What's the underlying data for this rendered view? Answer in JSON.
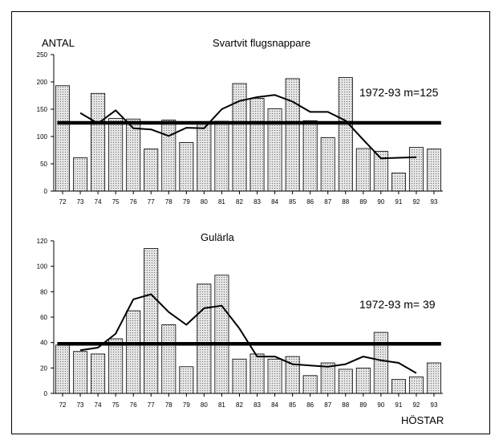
{
  "colors": {
    "bar_fill": "#d8d8d8",
    "bar_stroke": "#000000",
    "mean_line": "#000000",
    "trend_line": "#000000"
  },
  "chart_data": [
    {
      "type": "bar",
      "title": "Svartvit flugsnappare",
      "ylabel": "ANTAL",
      "xlabel": "",
      "categories": [
        "72",
        "73",
        "74",
        "75",
        "76",
        "77",
        "78",
        "79",
        "80",
        "81",
        "82",
        "83",
        "84",
        "85",
        "86",
        "87",
        "88",
        "89",
        "90",
        "91",
        "92",
        "93"
      ],
      "values": [
        193,
        61,
        179,
        133,
        132,
        77,
        130,
        89,
        123,
        128,
        197,
        170,
        151,
        206,
        129,
        98,
        208,
        78,
        73,
        33,
        80,
        77
      ],
      "ylim": [
        0,
        250
      ],
      "yticks": [
        0,
        50,
        100,
        150,
        200,
        250
      ],
      "mean": {
        "value": 125,
        "label": "1972-93 m=125"
      },
      "trend": {
        "x": [
          "73",
          "74",
          "75",
          "76",
          "77",
          "78",
          "79",
          "80",
          "81",
          "82",
          "83",
          "84",
          "85",
          "86",
          "87",
          "88",
          "89",
          "90",
          "91",
          "92"
        ],
        "values": [
          143,
          124,
          148,
          115,
          113,
          101,
          116,
          115,
          150,
          165,
          172,
          176,
          164,
          145,
          145,
          129,
          94,
          60,
          61,
          62
        ]
      }
    },
    {
      "type": "bar",
      "title": "Gulärla",
      "ylabel": "",
      "xlabel": "HÖSTAR",
      "categories": [
        "72",
        "73",
        "74",
        "75",
        "76",
        "77",
        "78",
        "79",
        "80",
        "81",
        "82",
        "83",
        "84",
        "85",
        "86",
        "87",
        "88",
        "89",
        "90",
        "91",
        "92",
        "93"
      ],
      "values": [
        38,
        33,
        31,
        43,
        65,
        114,
        54,
        21,
        86,
        93,
        27,
        31,
        27,
        29,
        14,
        24,
        19,
        20,
        48,
        11,
        13,
        24
      ],
      "ylim": [
        0,
        120
      ],
      "yticks": [
        0,
        20,
        40,
        60,
        80,
        100,
        120
      ],
      "mean": {
        "value": 39,
        "label": "1972-93 m= 39"
      },
      "trend": {
        "x": [
          "73",
          "74",
          "75",
          "76",
          "77",
          "78",
          "79",
          "80",
          "81",
          "82",
          "83",
          "84",
          "85",
          "86",
          "87",
          "88",
          "89",
          "90",
          "91",
          "92"
        ],
        "values": [
          34,
          36,
          47,
          74,
          78,
          64,
          54,
          67,
          69,
          51,
          29,
          29,
          23,
          22,
          21,
          23,
          29,
          26,
          24,
          16
        ]
      }
    }
  ]
}
